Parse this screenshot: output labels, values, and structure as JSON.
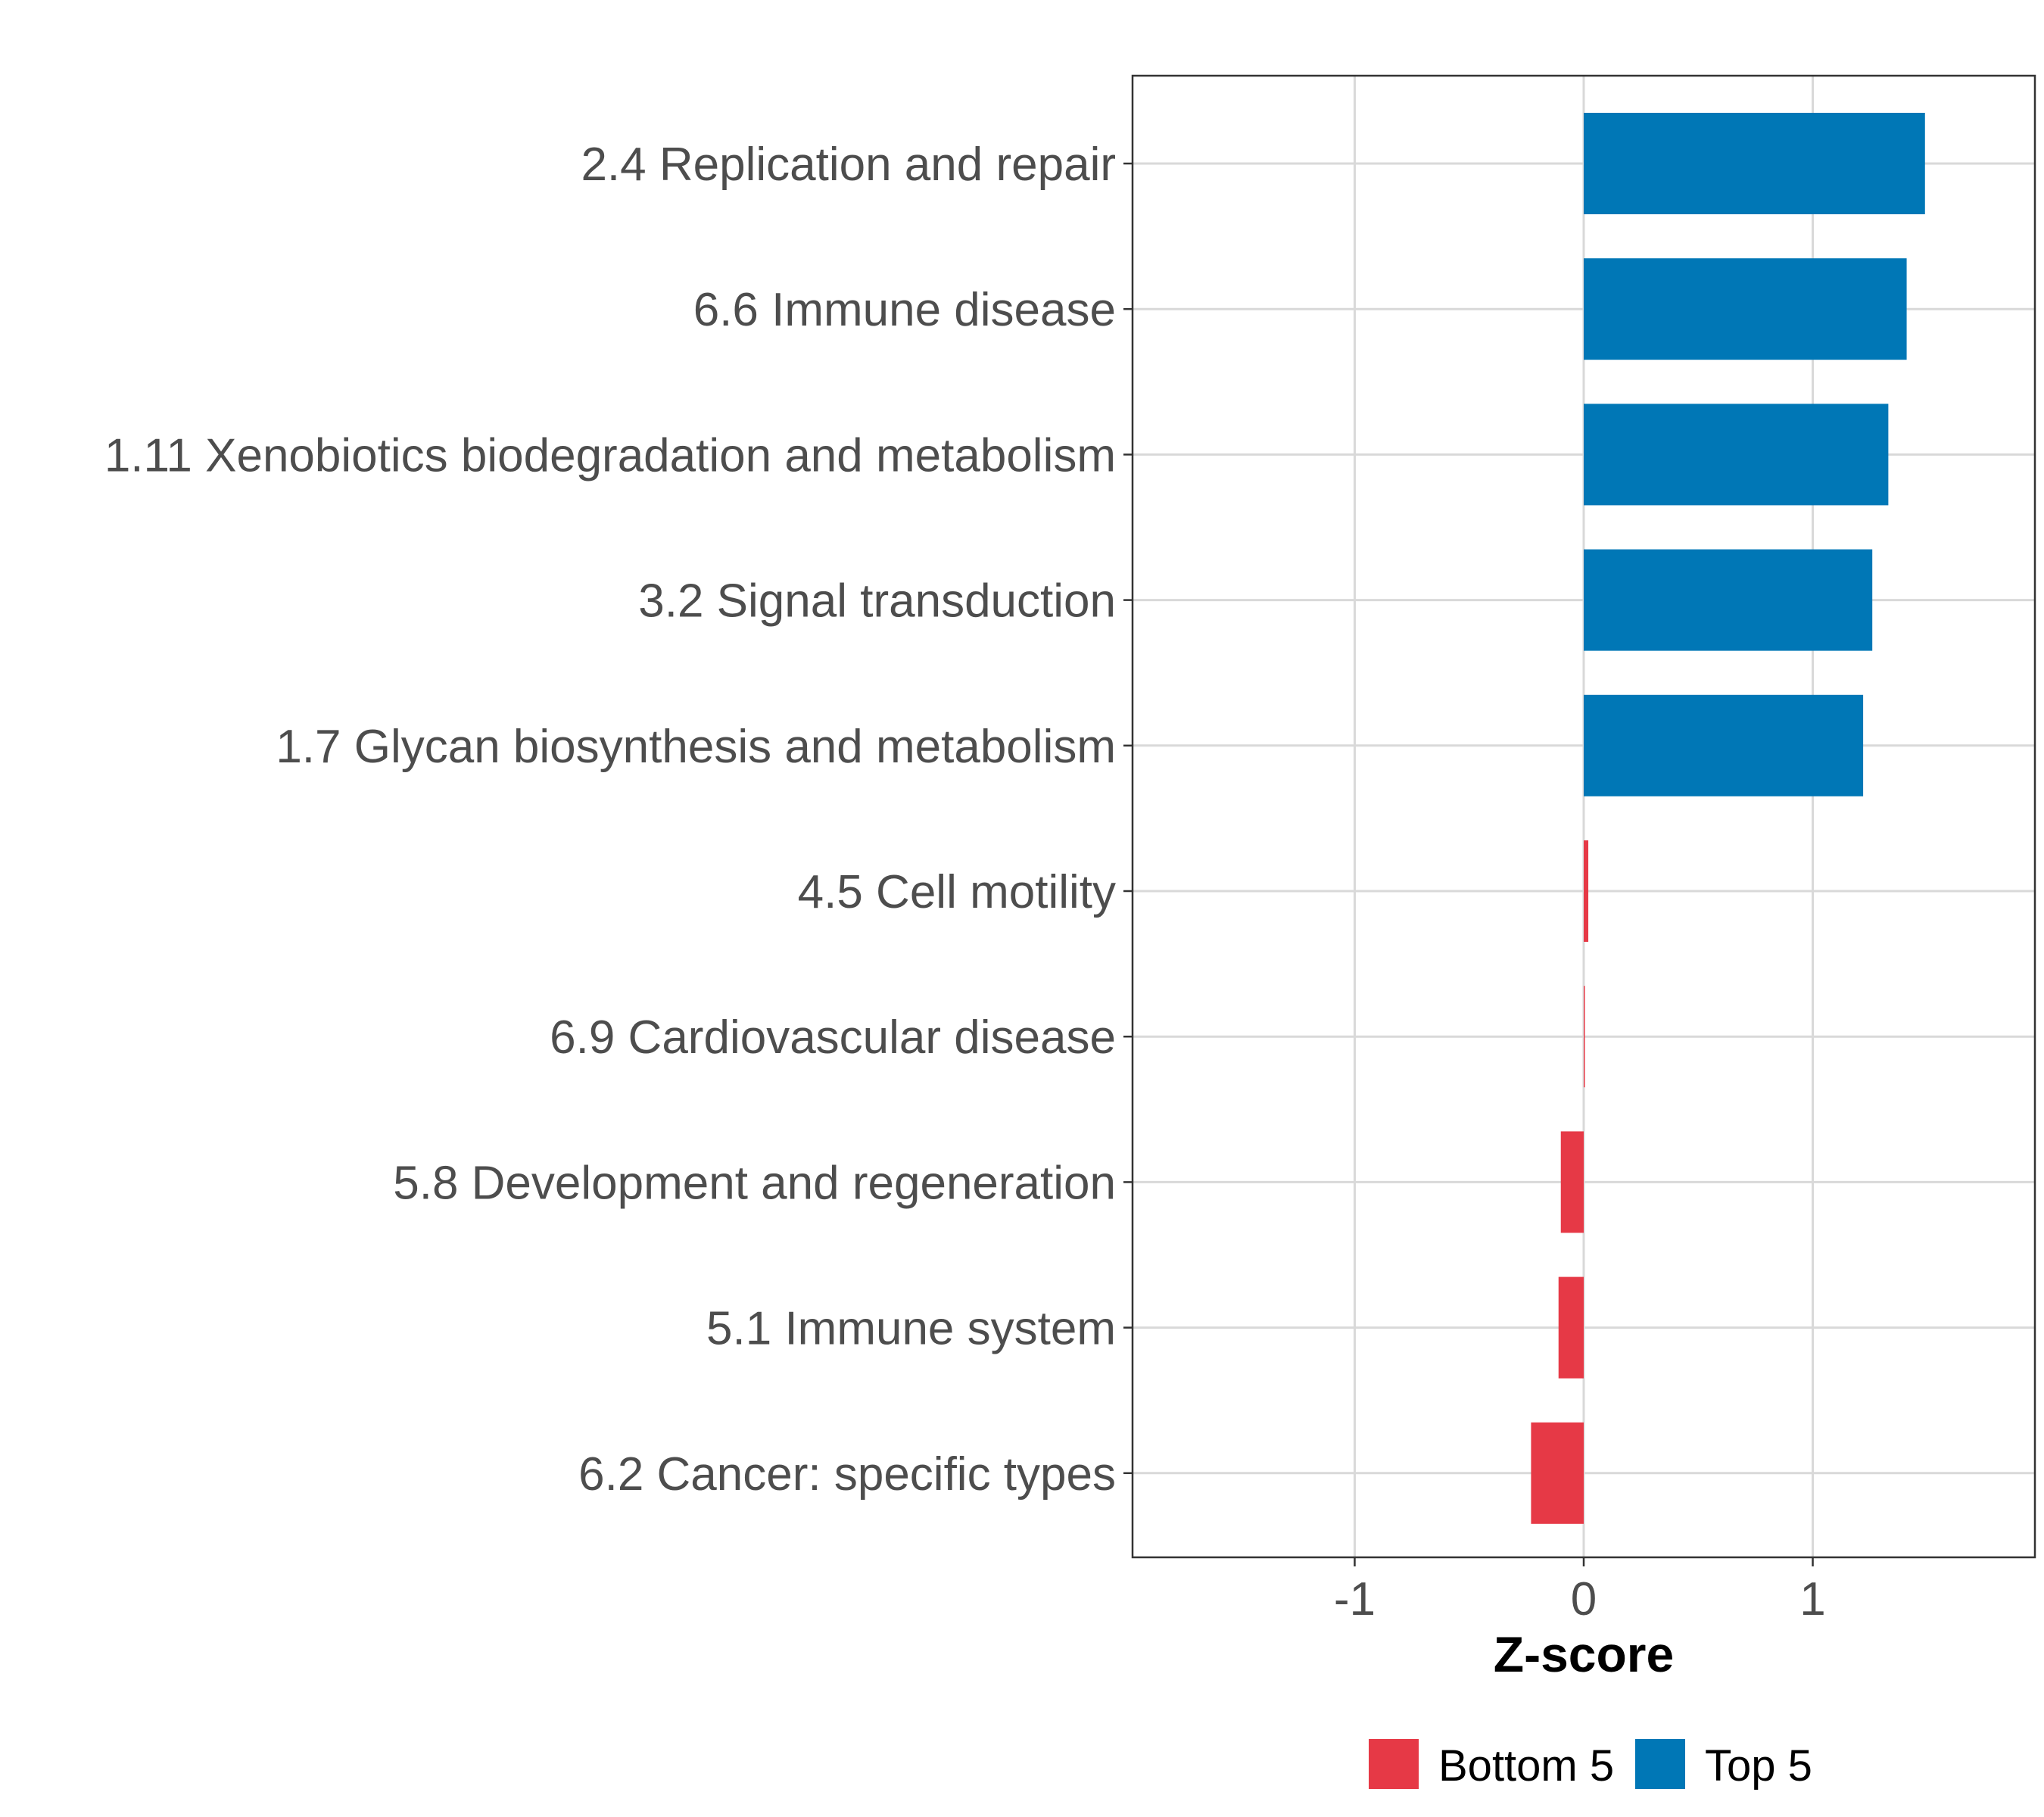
{
  "chart_data": {
    "type": "bar",
    "orientation": "horizontal",
    "categories": [
      "2.4 Replication and repair",
      "6.6 Immune disease",
      "1.11 Xenobiotics biodegradation and metabolism",
      "3.2 Signal transduction",
      "1.7 Glycan biosynthesis and metabolism",
      "4.5 Cell motility",
      "6.9 Cardiovascular disease",
      "5.8 Development and regeneration",
      "5.1 Immune system",
      "6.2 Cancer: specific types"
    ],
    "values": [
      1.49,
      1.41,
      1.33,
      1.26,
      1.22,
      0.02,
      0.005,
      -0.1,
      -0.11,
      -0.23
    ],
    "groups": [
      "Top 5",
      "Top 5",
      "Top 5",
      "Top 5",
      "Top 5",
      "Bottom 5",
      "Bottom 5",
      "Bottom 5",
      "Bottom 5",
      "Bottom 5"
    ],
    "xlabel": "Z-score",
    "xlim": [
      -1.97,
      1.97
    ],
    "xticks": [
      -1,
      0,
      1
    ],
    "xtick_labels": [
      "-1",
      "0",
      "1"
    ],
    "grid": true,
    "legend": {
      "placement": "bottom",
      "items": [
        {
          "label": "Bottom 5",
          "color": "#E63946"
        },
        {
          "label": "Top 5",
          "color": "#0077B6"
        }
      ]
    },
    "colors": {
      "Top 5": "#0077B6",
      "Bottom 5": "#E63946"
    }
  }
}
